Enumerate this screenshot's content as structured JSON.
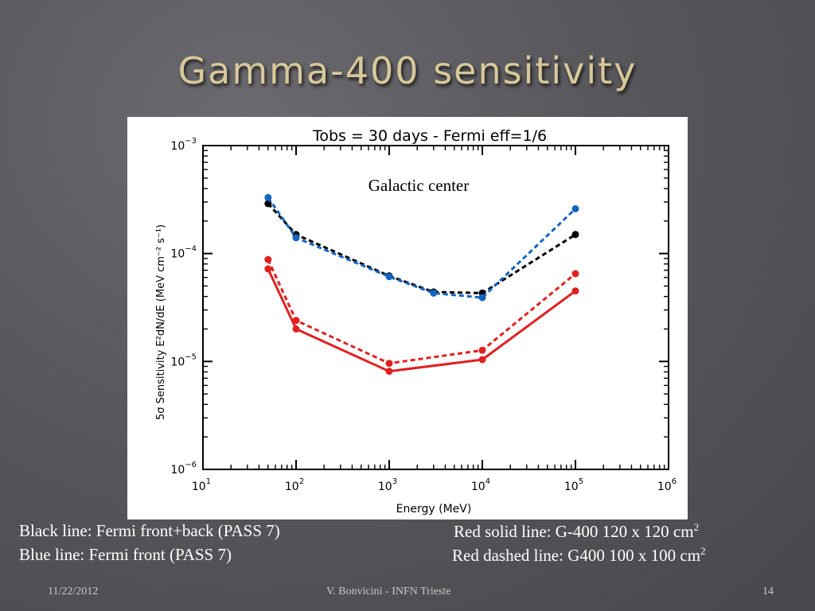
{
  "slide": {
    "title": "Gamma-400 sensitivity",
    "caption_black": "Black line: Fermi front+back  (PASS 7)",
    "caption_blue": "Blue line: Fermi front (PASS 7)",
    "caption_red_solid": "Red solid line: G-400 120 x 120 cm",
    "caption_red_dashed": "Red dashed line: G400 100 x 100 cm",
    "caption_exponent": "2",
    "footer_date": "11/22/2012",
    "footer_author": "V. Bonvicini - INFN Trieste",
    "footer_page": "14"
  },
  "chart_data": {
    "type": "line",
    "title": "Tobs = 30 days - Fermi eff=1/6",
    "annotation": "Galactic center",
    "xlabel": "Energy (MeV)",
    "ylabel": "5σ Sensitivity E²dN/dE (MeV cm⁻² s⁻¹)",
    "xscale": "log",
    "yscale": "log",
    "xlim": [
      10,
      1000000
    ],
    "ylim": [
      1e-06,
      0.001
    ],
    "x_tick_labels": [
      {
        "base": "10",
        "exp": "1"
      },
      {
        "base": "10",
        "exp": "2"
      },
      {
        "base": "10",
        "exp": "3"
      },
      {
        "base": "10",
        "exp": "4"
      },
      {
        "base": "10",
        "exp": "5"
      },
      {
        "base": "10",
        "exp": "6"
      }
    ],
    "y_tick_labels": [
      {
        "base": "10",
        "exp": "−6"
      },
      {
        "base": "10",
        "exp": "−5"
      },
      {
        "base": "10",
        "exp": "−4"
      },
      {
        "base": "10",
        "exp": "−3"
      }
    ],
    "series": [
      {
        "color": "#000000",
        "style": "dashed",
        "x": [
          50,
          100,
          1000,
          3000,
          10000,
          100000
        ],
        "y": [
          0.00029,
          0.00015,
          6.2e-05,
          4.4e-05,
          4.3e-05,
          0.00015
        ]
      },
      {
        "color": "#1565c0",
        "style": "dashed",
        "x": [
          50,
          100,
          1000,
          3000,
          10000,
          100000
        ],
        "y": [
          0.00033,
          0.00014,
          6.1e-05,
          4.3e-05,
          3.9e-05,
          0.00026
        ]
      },
      {
        "color": "#e02020",
        "style": "solid",
        "x": [
          50,
          100,
          1000,
          10000,
          100000
        ],
        "y": [
          7.2e-05,
          2e-05,
          8.1e-06,
          1.04e-05,
          4.5e-05
        ]
      },
      {
        "color": "#e02020",
        "style": "dashed",
        "x": [
          50,
          100,
          1000,
          10000,
          100000
        ],
        "y": [
          8.8e-05,
          2.4e-05,
          9.6e-06,
          1.27e-05,
          6.5e-05
        ]
      }
    ],
    "legend": "none",
    "grid": false
  }
}
